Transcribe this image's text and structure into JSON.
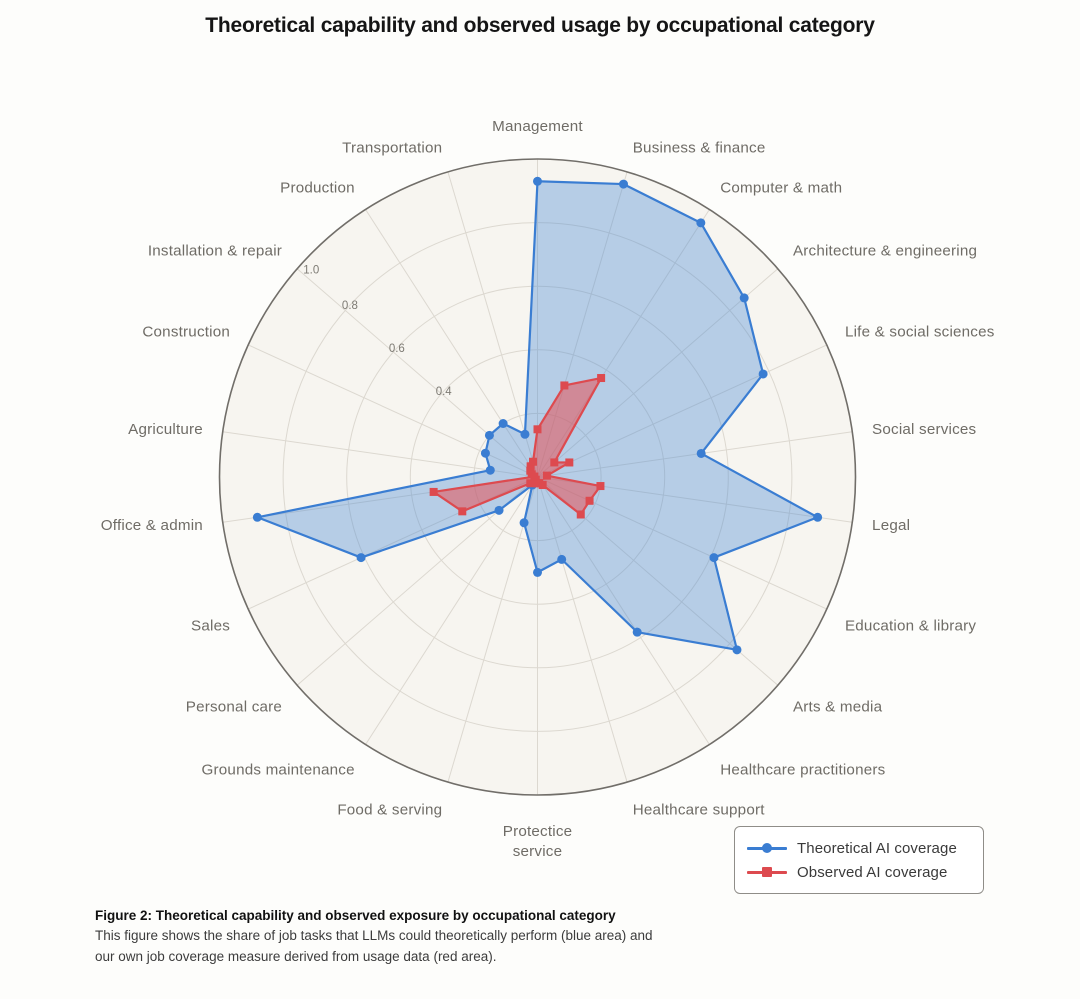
{
  "title": "Theoretical capability and observed usage by occupational category",
  "chart_data": {
    "type": "radar",
    "rmax": 1.0,
    "grid": true,
    "start_angle": "top",
    "direction": "clockwise",
    "categories": [
      {
        "label": "Management"
      },
      {
        "label": "Business & finance"
      },
      {
        "label": "Computer & math"
      },
      {
        "label": "Architecture & engineering"
      },
      {
        "label": "Life & social sciences"
      },
      {
        "label": "Social services"
      },
      {
        "label": "Legal"
      },
      {
        "label": "Education & library"
      },
      {
        "label": "Arts & media"
      },
      {
        "label": "Healthcare practitioners"
      },
      {
        "label": "Healthcare support"
      },
      {
        "label": "Protectice service",
        "lines": [
          "Protectice",
          "service"
        ]
      },
      {
        "label": "Food & serving"
      },
      {
        "label": "Grounds maintenance"
      },
      {
        "label": "Personal care"
      },
      {
        "label": "Sales"
      },
      {
        "label": "Office & admin"
      },
      {
        "label": "Agriculture"
      },
      {
        "label": "Construction"
      },
      {
        "label": "Installation & repair"
      },
      {
        "label": "Production"
      },
      {
        "label": "Transportation"
      }
    ],
    "series": [
      {
        "name": "Theoretical AI coverage",
        "marker": "circle",
        "color": "#3a7dd2",
        "fill": "rgba(77,140,214,0.38)",
        "values": [
          0.93,
          0.96,
          0.95,
          0.86,
          0.78,
          0.52,
          0.89,
          0.61,
          0.83,
          0.58,
          0.27,
          0.3,
          0.15,
          0.03,
          0.16,
          0.61,
          0.89,
          0.15,
          0.18,
          0.2,
          0.2,
          0.14
        ]
      },
      {
        "name": "Observed AI coverage",
        "marker": "square",
        "color": "#dd4a4f",
        "fill": "rgba(229,82,86,0.55)",
        "values": [
          0.15,
          0.3,
          0.37,
          0.07,
          0.11,
          0.03,
          0.2,
          0.18,
          0.18,
          0.03,
          0.02,
          0.02,
          0.02,
          0.01,
          0.03,
          0.26,
          0.33,
          0.01,
          0.02,
          0.03,
          0.04,
          0.05
        ]
      }
    ],
    "r_rings": [
      0.2,
      0.4,
      0.6,
      0.8,
      1.0
    ],
    "r_tick_labels": [
      {
        "v": 0.4,
        "label": "0.4"
      },
      {
        "v": 0.6,
        "label": "0.6"
      },
      {
        "v": 0.8,
        "label": "0.8"
      },
      {
        "v": 1.0,
        "label": "1.0"
      }
    ],
    "legend_position": "bottom-right"
  },
  "caption": {
    "heading": "Figure 2: Theoretical capability and observed exposure by occupational category",
    "body": "This figure shows the share of job tasks that LLMs could theoretically perform (blue area) and our own job coverage measure derived from usage data (red area)."
  },
  "colors": {
    "page_bg": "#fdfdfb",
    "plot_bg": "#f7f5f0",
    "grid": "#dcd8d0",
    "outline": "#716e69",
    "category_label": "#6f6c66",
    "tick_label": "#7d7a73",
    "title": "#151515",
    "legend_border": "#8f8d88"
  }
}
